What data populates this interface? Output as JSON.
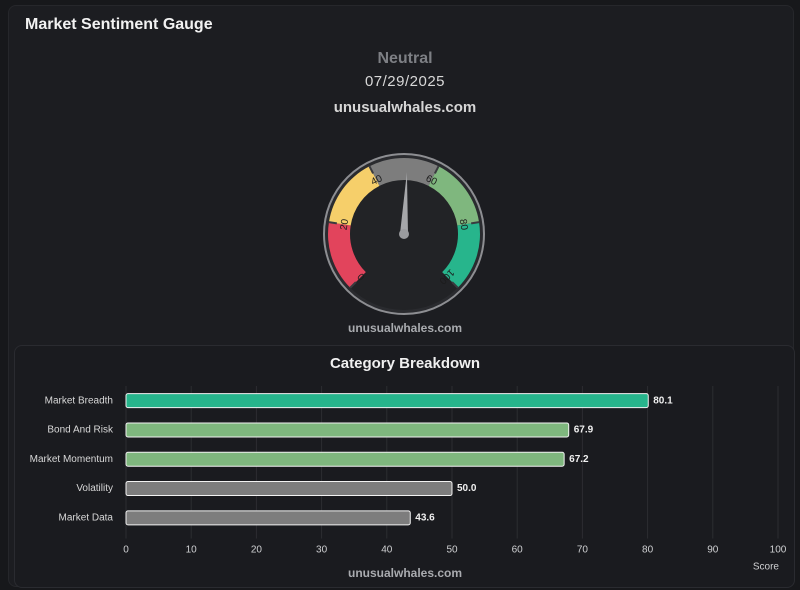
{
  "title": "Market Sentiment Gauge",
  "sentiment": "Neutral",
  "date": "07/29/2025",
  "site": "unusualwhales.com",
  "gauge": {
    "value": 51,
    "min": 0,
    "max": 100,
    "ticks": [
      "0",
      "20",
      "40",
      "60",
      "80",
      "100"
    ],
    "bands": [
      {
        "from": 0,
        "to": 20,
        "color": "#e2445c"
      },
      {
        "from": 20,
        "to": 40,
        "color": "#f6cf6a"
      },
      {
        "from": 40,
        "to": 60,
        "color": "#7d7d7d"
      },
      {
        "from": 60,
        "to": 80,
        "color": "#7fb77e"
      },
      {
        "from": 80,
        "to": 100,
        "color": "#27b58c"
      }
    ]
  },
  "breakdown_title": "Category Breakdown",
  "chart_data": {
    "type": "bar",
    "orientation": "horizontal",
    "title": "Category Breakdown",
    "categories": [
      "Market Breadth",
      "Bond And Risk",
      "Market Momentum",
      "Volatility",
      "Market Data"
    ],
    "values": [
      80.1,
      67.9,
      67.2,
      50.0,
      43.6
    ],
    "value_labels": [
      "80.1",
      "67.9",
      "67.2",
      "50.0",
      "43.6"
    ],
    "colors": [
      "#27b58c",
      "#7fb77e",
      "#7fb77e",
      "#7d7d7d",
      "#7d7d7d"
    ],
    "xlabel": "Score",
    "ylabel": "",
    "xlim": [
      0,
      100
    ],
    "xticks": [
      "0",
      "10",
      "20",
      "30",
      "40",
      "50",
      "60",
      "70",
      "80",
      "90",
      "100"
    ],
    "grid": true
  }
}
